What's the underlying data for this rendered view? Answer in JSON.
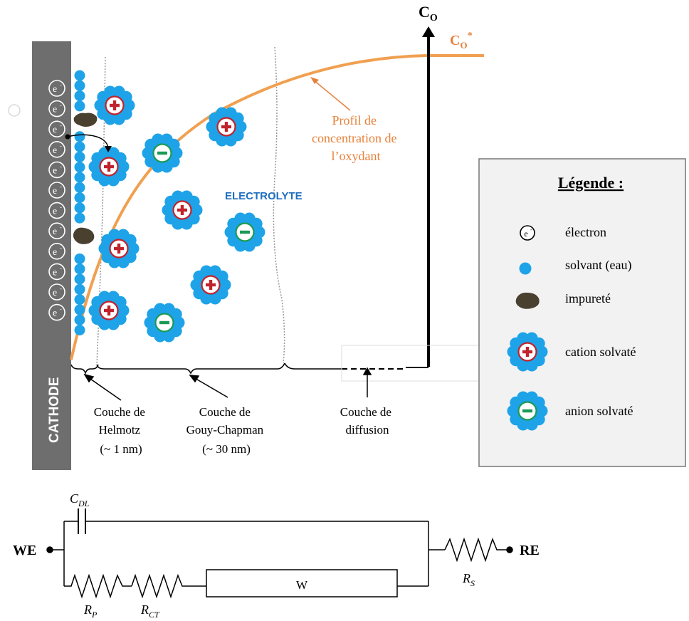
{
  "cathode_label": "CATHODE",
  "electrolyte_label": "ELECTROLYTE",
  "axis": {
    "label": "C",
    "sub": "O",
    "cstar": "C",
    "cstar_sub": "O",
    "cstar_sup": "*"
  },
  "profile_label": [
    "Profil de",
    "concentration de",
    "l’oxydant"
  ],
  "electron_symbol": "e",
  "electron_sup": "-",
  "layers": [
    {
      "lines": [
        "Couche de",
        "Helmotz",
        "(~ 1 nm)"
      ]
    },
    {
      "lines": [
        "Couche de",
        "Gouy-Chapman",
        "(~ 30 nm)"
      ]
    },
    {
      "lines": [
        "Couche de",
        "diffusion"
      ]
    }
  ],
  "legend": {
    "title": "Légende :",
    "items": [
      {
        "icon": "electron-icon",
        "label": "électron"
      },
      {
        "icon": "solvent-icon",
        "label": "solvant (eau)"
      },
      {
        "icon": "impurity-icon",
        "label": "impureté"
      },
      {
        "icon": "cation-icon",
        "label": "cation solvaté"
      },
      {
        "icon": "anion-icon",
        "label": "anion solvaté"
      }
    ]
  },
  "circuit": {
    "we": "WE",
    "re": "RE",
    "cdl": "C",
    "cdl_sub": "DL",
    "rp": "R",
    "rp_sub": "P",
    "rct": "R",
    "rct_sub": "CT",
    "rs": "R",
    "rs_sub": "S",
    "w": "W"
  },
  "colors": {
    "cathode": "#6e6e6e",
    "solvent": "#1ea3e8",
    "cation": "#c0232d",
    "anion": "#1a9a55",
    "profile": "#f0a050",
    "electrolyte_text": "#1f6fbf",
    "legend_bg": "#f2f2f2"
  }
}
